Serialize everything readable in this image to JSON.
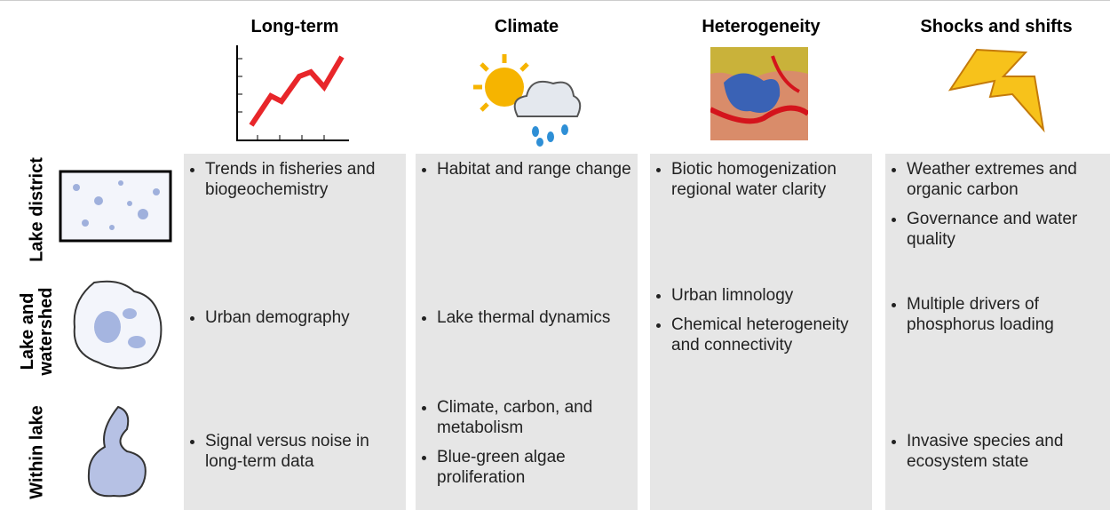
{
  "columns": [
    {
      "title": "Long-term"
    },
    {
      "title": "Climate"
    },
    {
      "title": "Heterogeneity"
    },
    {
      "title": "Shocks and shifts"
    }
  ],
  "rows": [
    {
      "label": "Lake district"
    },
    {
      "label": "Lake and watershed"
    },
    {
      "label": "Within lake"
    }
  ],
  "cells": [
    [
      [
        "Trends in fisheries and biogeochemistry"
      ],
      [
        "Habitat and range change"
      ],
      [
        "Biotic homogenization regional water clarity"
      ],
      [
        "Weather extremes and organic carbon",
        "Governance and water quality"
      ]
    ],
    [
      [
        "Urban demography"
      ],
      [
        "Lake thermal dynamics"
      ],
      [
        "Urban limnology",
        "Chemical heterogeneity and connectivity"
      ],
      [
        "Multiple drivers of phosphorus loading"
      ]
    ],
    [
      [
        "Signal versus noise in long-term data"
      ],
      [
        "Climate, carbon, and metabolism",
        "Blue-green algae proliferation"
      ],
      [],
      [
        "Invasive species and ecosystem state"
      ]
    ]
  ]
}
